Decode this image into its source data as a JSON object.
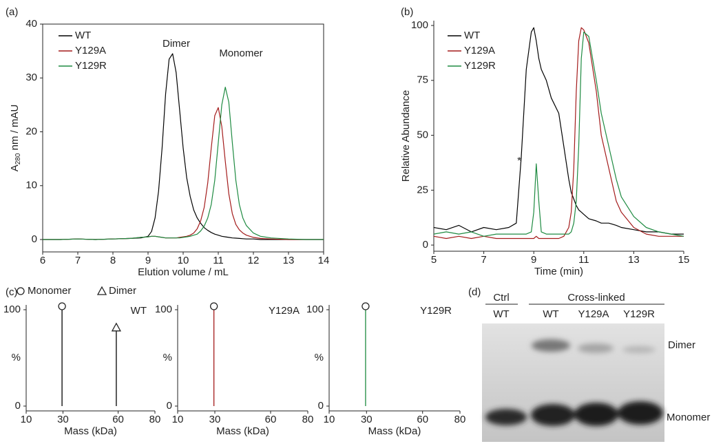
{
  "chart_data": [
    {
      "type": "line",
      "panel_label": "(a)",
      "xlabel": "Elution volume / mL",
      "ylabel": [
        "A",
        "280",
        " nm / mAU"
      ],
      "annotations": [
        "Dimer",
        "Monomer"
      ],
      "x": [
        6,
        6.5,
        7,
        7.5,
        8,
        8.5,
        8.8,
        9,
        9.1,
        9.2,
        9.3,
        9.4,
        9.5,
        9.6,
        9.7,
        9.8,
        9.9,
        10,
        10.1,
        10.2,
        10.3,
        10.4,
        10.5,
        10.6,
        10.7,
        10.8,
        10.9,
        11,
        11.1,
        11.2,
        11.3,
        11.4,
        11.5,
        11.6,
        11.7,
        11.8,
        12,
        12.2,
        12.5,
        13,
        13.5,
        14
      ],
      "series": [
        {
          "name": "WT",
          "color": "#000000",
          "values": [
            0,
            0,
            0.1,
            0,
            0.1,
            0.2,
            0.3,
            0.6,
            1.5,
            4,
            9,
            17,
            27,
            33.5,
            34.5,
            31,
            24,
            17,
            11.5,
            8,
            5.5,
            4,
            3,
            2.2,
            1.7,
            1.3,
            1,
            0.8,
            0.6,
            0.5,
            0.4,
            0.3,
            0.25,
            0.2,
            0.15,
            0.1,
            0.1,
            0,
            0,
            0,
            0,
            0
          ]
        },
        {
          "name": "Y129A",
          "color": "#a31a1a",
          "values": [
            0,
            0,
            0.1,
            0,
            0.1,
            0.2,
            0.4,
            0.5,
            0.6,
            0.6,
            0.5,
            0.4,
            0.3,
            0.3,
            0.3,
            0.3,
            0.4,
            0.5,
            0.6,
            0.8,
            1.2,
            2,
            3.5,
            6,
            10.5,
            17,
            23,
            24.5,
            21,
            14.5,
            8.5,
            4.8,
            2.8,
            1.8,
            1.2,
            0.8,
            0.4,
            0.2,
            0.1,
            0,
            0,
            0
          ]
        },
        {
          "name": "Y129R",
          "color": "#1d8a40",
          "values": [
            0,
            0,
            0.1,
            0,
            0.1,
            0.2,
            0.4,
            0.5,
            0.6,
            0.6,
            0.5,
            0.4,
            0.3,
            0.3,
            0.3,
            0.3,
            0.3,
            0.4,
            0.5,
            0.6,
            0.8,
            1,
            1.6,
            2.5,
            4,
            6.5,
            11,
            18,
            25,
            28.3,
            25.5,
            18,
            11,
            6.5,
            4,
            2.6,
            1.2,
            0.6,
            0.3,
            0.1,
            0,
            0
          ]
        }
      ],
      "xlim": [
        6,
        14
      ],
      "xticks": [
        6,
        7,
        8,
        9,
        10,
        11,
        12,
        13,
        14
      ],
      "ylim": [
        -2.3,
        40
      ],
      "yticks": [
        0,
        10,
        20,
        30,
        40
      ],
      "box": true,
      "legend": "upper left"
    },
    {
      "type": "line",
      "panel_label": "(b)",
      "xlabel": "Time (min)",
      "ylabel": [
        "Relative Abundance"
      ],
      "annotations": [
        "*"
      ],
      "x": [
        5,
        5.5,
        6,
        6.5,
        7,
        7.5,
        8,
        8.3,
        8.5,
        8.7,
        8.9,
        9,
        9.1,
        9.2,
        9.3,
        9.5,
        9.7,
        10,
        10.2,
        10.4,
        10.5,
        10.6,
        10.7,
        10.8,
        10.9,
        11,
        11.2,
        11.5,
        11.7,
        12,
        12.3,
        12.5,
        13,
        13.5,
        14,
        14.5,
        15
      ],
      "series": [
        {
          "name": "WT",
          "color": "#000000",
          "values": [
            8,
            7,
            9,
            6,
            8,
            7,
            8,
            10,
            40,
            80,
            97,
            99,
            93,
            85,
            80,
            75,
            67,
            60,
            45,
            30,
            24,
            21,
            18,
            16,
            15,
            14,
            12,
            11,
            10,
            10,
            9,
            8,
            7,
            6,
            6,
            5,
            5
          ]
        },
        {
          "name": "Y129A",
          "color": "#a31a1a",
          "values": [
            4,
            3,
            4,
            3,
            4,
            3,
            3,
            3,
            3,
            3,
            3,
            3,
            4,
            3,
            3,
            3,
            3,
            3,
            4,
            8,
            15,
            35,
            70,
            93,
            99,
            98,
            92,
            70,
            50,
            35,
            20,
            15,
            8,
            5,
            4,
            4,
            4
          ]
        },
        {
          "name": "Y129R",
          "color": "#1d8a40",
          "values": [
            5,
            6,
            5,
            6,
            4,
            5,
            5,
            5,
            5,
            5,
            6,
            15,
            37,
            20,
            6,
            5,
            5,
            5,
            5,
            5,
            6,
            10,
            20,
            45,
            85,
            97,
            95,
            75,
            60,
            45,
            30,
            22,
            13,
            8,
            6,
            5,
            4
          ]
        }
      ],
      "xlim": [
        5,
        15
      ],
      "xticks": [
        5,
        7,
        9,
        11,
        13,
        15
      ],
      "ylim": [
        -2.8,
        102.2
      ],
      "yticks": [
        0,
        25,
        50,
        75,
        100
      ],
      "box": false,
      "legend": "upper left"
    },
    {
      "type": "stick",
      "panel_label": "(c)",
      "title": "WT",
      "xlabel": "Mass (kDa)",
      "ylabel": [
        "%"
      ],
      "marker_legend": [
        {
          "marker": "circle",
          "name": "Monomer"
        },
        {
          "marker": "triangle",
          "name": "Dimer"
        }
      ],
      "x": [
        29.5,
        59
      ],
      "values": [
        100,
        78
      ],
      "markers": [
        "circle",
        "triangle"
      ],
      "color": "#000000",
      "xlim": [
        10,
        80
      ],
      "xticks": [
        10,
        30,
        60,
        80
      ],
      "ylim": [
        -5,
        105
      ],
      "yticks": [
        0,
        100
      ]
    },
    {
      "type": "stick",
      "title": "Y129A",
      "xlabel": "Mass (kDa)",
      "ylabel": [
        "%"
      ],
      "x": [
        29.5
      ],
      "values": [
        100
      ],
      "markers": [
        "circle"
      ],
      "color": "#a31a1a",
      "xlim": [
        10,
        80
      ],
      "xticks": [
        10,
        30,
        60,
        80
      ],
      "ylim": [
        -5,
        105
      ],
      "yticks": [
        0,
        100
      ]
    },
    {
      "type": "stick",
      "title": "Y129R",
      "xlabel": "Mass (kDa)",
      "ylabel": [
        "%"
      ],
      "x": [
        29.5
      ],
      "values": [
        100
      ],
      "markers": [
        "circle"
      ],
      "color": "#1d8a40",
      "xlim": [
        10,
        80
      ],
      "xticks": [
        10,
        30,
        60,
        80
      ],
      "ylim": [
        -5,
        105
      ],
      "yticks": [
        0,
        100
      ]
    }
  ],
  "gel": {
    "panel_label": "(d)",
    "groups": [
      "Ctrl",
      "Cross-linked"
    ],
    "lanes": [
      "WT",
      "WT",
      "Y129A",
      "Y129R"
    ],
    "bands": [
      "Dimer",
      "Monomer"
    ]
  }
}
